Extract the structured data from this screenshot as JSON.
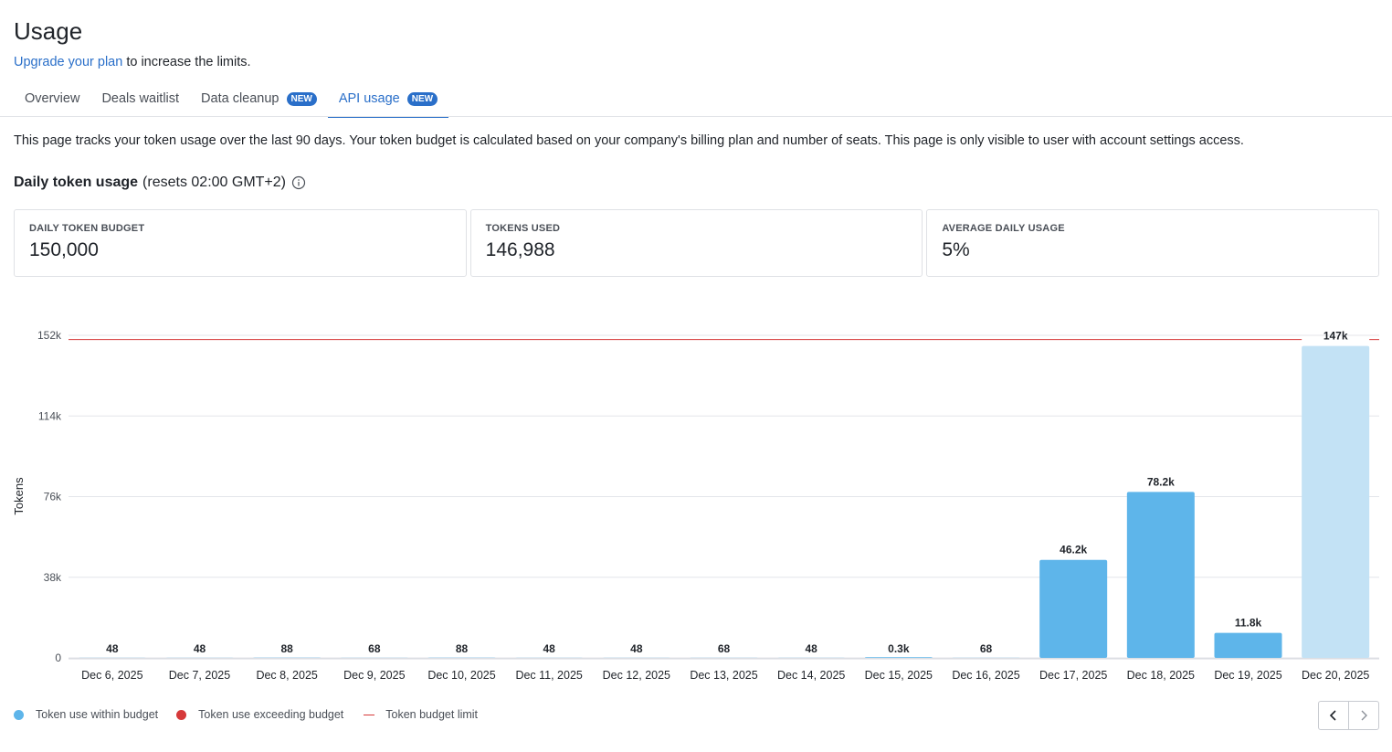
{
  "page": {
    "title": "Usage",
    "upgrade_link": "Upgrade your plan",
    "upgrade_suffix": " to increase the limits."
  },
  "tabs": [
    {
      "label": "Overview",
      "badge": ""
    },
    {
      "label": "Deals waitlist",
      "badge": ""
    },
    {
      "label": "Data cleanup",
      "badge": "NEW"
    },
    {
      "label": "API usage",
      "badge": "NEW",
      "active": true
    }
  ],
  "description": "This page tracks your token usage over the last 90 days. Your token budget is calculated based on your company's billing plan and number of seats. This page is only visible to user with account settings access.",
  "section": {
    "title": "Daily token usage",
    "subtitle": "(resets 02:00 GMT+2)",
    "info_icon": "info-circle-icon"
  },
  "cards": [
    {
      "label": "DAILY TOKEN BUDGET",
      "value": "150,000"
    },
    {
      "label": "TOKENS USED",
      "value": "146,988"
    },
    {
      "label": "AVERAGE DAILY USAGE",
      "value": "5%"
    }
  ],
  "chart_data": {
    "type": "bar",
    "ylabel": "Tokens",
    "ylim": [
      0,
      152000
    ],
    "yticks": [
      {
        "value": 0,
        "label": "0"
      },
      {
        "value": 38000,
        "label": "38k"
      },
      {
        "value": 76000,
        "label": "76k"
      },
      {
        "value": 114000,
        "label": "114k"
      },
      {
        "value": 152000,
        "label": "152k"
      }
    ],
    "budget_limit": 150000,
    "categories": [
      "Dec 6, 2025",
      "Dec 7, 2025",
      "Dec 8, 2025",
      "Dec 9, 2025",
      "Dec 10, 2025",
      "Dec 11, 2025",
      "Dec 12, 2025",
      "Dec 13, 2025",
      "Dec 14, 2025",
      "Dec 15, 2025",
      "Dec 16, 2025",
      "Dec 17, 2025",
      "Dec 18, 2025",
      "Dec 19, 2025",
      "Dec 20, 2025"
    ],
    "values": [
      48,
      48,
      88,
      68,
      88,
      48,
      48,
      68,
      48,
      300,
      68,
      46200,
      78200,
      11800,
      147000
    ],
    "value_labels": [
      "48",
      "48",
      "88",
      "68",
      "88",
      "48",
      "48",
      "68",
      "48",
      "0.3k",
      "68",
      "46.2k",
      "78.2k",
      "11.8k",
      "147k"
    ],
    "colors": {
      "within_budget": "#5eb5ea",
      "current_day": "#c3e2f5",
      "exceeding_budget": "#d6393a",
      "budget_limit": "#d6393a",
      "grid": "#e4e6ea"
    },
    "grid": true,
    "legend_placement": "bottom-left"
  },
  "legend": [
    {
      "label": "Token use within budget",
      "color": "#5eb5ea"
    },
    {
      "label": "Token use exceeding budget",
      "color": "#d6393a"
    },
    {
      "label": "Token budget limit",
      "color": "#d6393a"
    }
  ],
  "pager": {
    "prev_icon": "chevron-left-icon",
    "next_icon": "chevron-right-icon"
  }
}
